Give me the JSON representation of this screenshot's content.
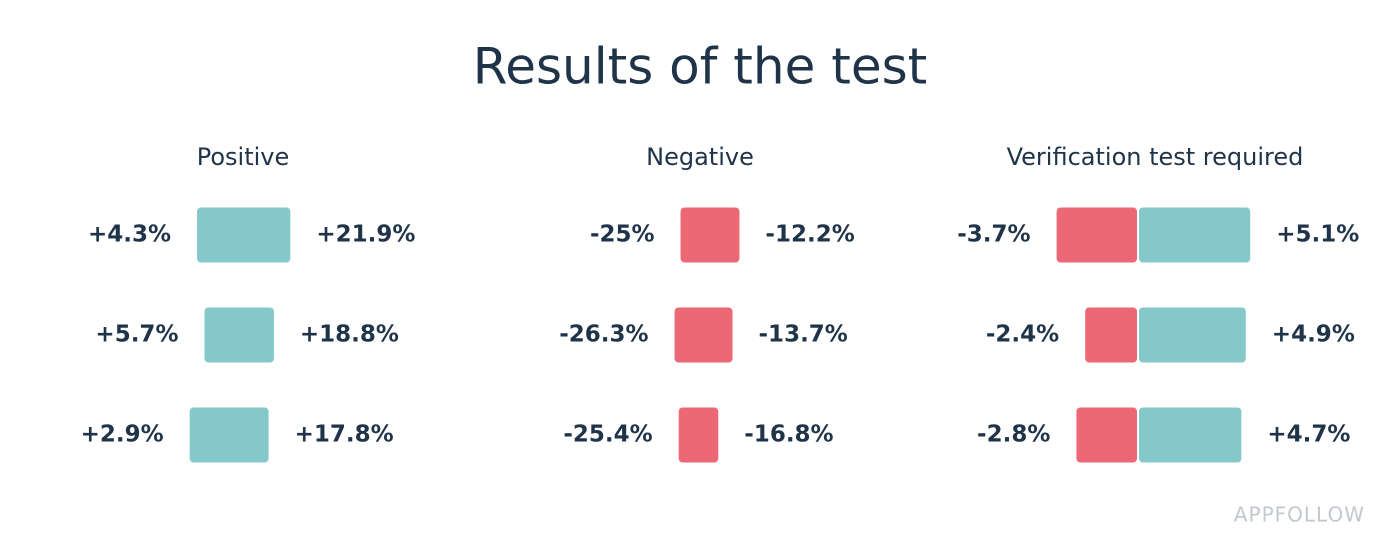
{
  "title": "Results of the test",
  "watermark": "APPFOLLOW",
  "chart_data": [
    {
      "type": "range",
      "title": "Positive",
      "color": "#85c8c9",
      "low": {
        "values": [
          4.3,
          5.7,
          2.9
        ],
        "value_labels": [
          "+4.3%",
          "+5.7%",
          "+2.9%"
        ]
      },
      "high": {
        "values": [
          21.9,
          18.8,
          17.8
        ],
        "value_labels": [
          "+21.9%",
          "+18.8%",
          "+17.8%"
        ]
      }
    },
    {
      "type": "range",
      "title": "Negative",
      "color": "#ec6874",
      "low": {
        "values": [
          -25,
          -26.3,
          -25.4
        ],
        "value_labels": [
          "-25%",
          "-26.3%",
          "-25.4%"
        ]
      },
      "high": {
        "values": [
          -12.2,
          -13.7,
          -16.8
        ],
        "value_labels": [
          "-12.2%",
          "-13.7%",
          "-16.8%"
        ]
      }
    },
    {
      "type": "split",
      "title": "Verification test required",
      "negative_color": "#ec6874",
      "positive_color": "#85c8c9",
      "low": {
        "values": [
          -3.7,
          -2.4,
          -2.8
        ],
        "value_labels": [
          "-3.7%",
          "-2.4%",
          "-2.8%"
        ]
      },
      "high": {
        "values": [
          5.1,
          4.9,
          4.7
        ],
        "value_labels": [
          "+5.1%",
          "+4.9%",
          "+4.7%"
        ]
      }
    }
  ]
}
